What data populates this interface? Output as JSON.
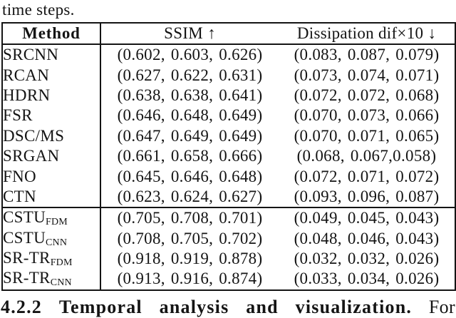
{
  "page": {
    "top_text": "time steps.",
    "bottom_heading": {
      "number": "4.2.2",
      "words": [
        "Temporal",
        "analysis",
        "and",
        "visualization."
      ],
      "trailing": "For"
    }
  },
  "table": {
    "headers": {
      "method": "Method",
      "ssim": "SSIM ↑",
      "dissipation": "Dissipation dif×10 ↓"
    },
    "groups": [
      {
        "rows": [
          {
            "method": "SRCNN",
            "sub": "",
            "ssim": "(0.602, 0.603, 0.626)",
            "dissipation": "(0.083, 0.087, 0.079)"
          },
          {
            "method": "RCAN",
            "sub": "",
            "ssim": "(0.627, 0.622, 0.631)",
            "dissipation": "(0.073, 0.074, 0.071)"
          },
          {
            "method": "HDRN",
            "sub": "",
            "ssim": "(0.638, 0.638, 0.641)",
            "dissipation": "(0.072, 0.072, 0.068)"
          },
          {
            "method": "FSR",
            "sub": "",
            "ssim": "(0.646, 0.648, 0.649)",
            "dissipation": "(0.070, 0.073, 0.066)"
          },
          {
            "method": "DSC/MS",
            "sub": "",
            "ssim": "(0.647, 0.649, 0.649)",
            "dissipation": "(0.070, 0.071, 0.065)"
          },
          {
            "method": "SRGAN",
            "sub": "",
            "ssim": "(0.661, 0.658, 0.666)",
            "dissipation": "(0.068, 0.067,0.058)"
          },
          {
            "method": "FNO",
            "sub": "",
            "ssim": "(0.645, 0.646, 0.648)",
            "dissipation": "(0.072, 0.071, 0.072)"
          },
          {
            "method": "CTN",
            "sub": "",
            "ssim": "(0.623, 0.624, 0.627)",
            "dissipation": "(0.093, 0.096, 0.087)"
          }
        ]
      },
      {
        "rows": [
          {
            "method": "CSTU",
            "sub": "FDM",
            "ssim": "(0.705, 0.708, 0.701)",
            "dissipation": "(0.049, 0.045, 0.043)"
          },
          {
            "method": "CSTU",
            "sub": "CNN",
            "ssim": "(0.708, 0.705, 0.702)",
            "dissipation": "(0.048, 0.046, 0.043)"
          },
          {
            "method": "SR-TR",
            "sub": "FDM",
            "ssim": "(0.918, 0.919, 0.878)",
            "dissipation": "(0.032, 0.032, 0.026)"
          },
          {
            "method": "SR-TR",
            "sub": "CNN",
            "ssim": "(0.913, 0.916, 0.874)",
            "dissipation": "(0.033, 0.034, 0.026)"
          }
        ]
      }
    ]
  },
  "colors": {
    "text": "#141414",
    "border": "#141414",
    "background": "#ffffff"
  }
}
